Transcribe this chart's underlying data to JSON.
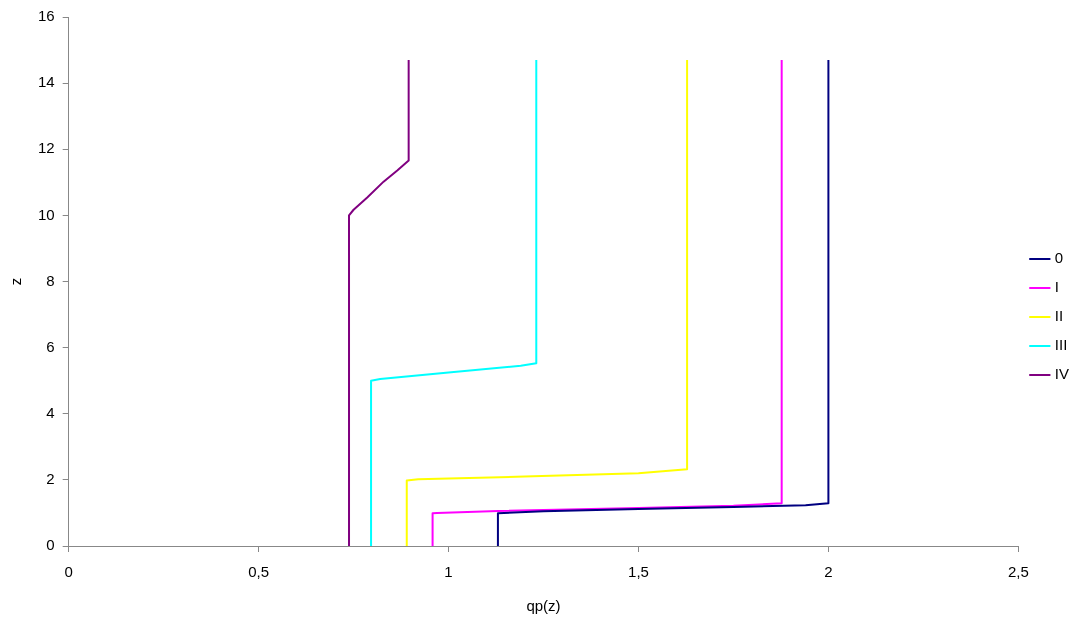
{
  "chart_data": {
    "type": "line",
    "xlabel": "qp(z)",
    "ylabel": "z",
    "xlim": [
      0,
      2.5
    ],
    "ylim": [
      0,
      16
    ],
    "xticks": [
      0,
      {
        "value": 0.5,
        "label": "0,5"
      },
      1,
      {
        "value": 1.5,
        "label": "1,5"
      },
      2,
      {
        "value": 2.5,
        "label": "2,5"
      }
    ],
    "yticks": [
      0,
      2,
      4,
      6,
      8,
      10,
      12,
      14,
      16
    ],
    "grid": false,
    "legend": "right",
    "marker": "none",
    "line_style": "solid",
    "series": [
      {
        "name": "0",
        "color": "#000080",
        "x": [
          1.13,
          1.13,
          1.25,
          1.5,
          1.75,
          1.94,
          2.0,
          2.0
        ],
        "values": [
          0,
          0.99,
          1.05,
          1.12,
          1.18,
          1.23,
          1.29,
          14.7
        ]
      },
      {
        "name": "I",
        "color": "#ff00ff",
        "x": [
          0.958,
          0.958,
          0.97,
          1.13,
          1.5,
          1.75,
          1.877,
          1.877
        ],
        "values": [
          0,
          0.99,
          1.0,
          1.06,
          1.15,
          1.22,
          1.29,
          14.7
        ]
      },
      {
        "name": "II",
        "color": "#ffff00",
        "x": [
          0.89,
          0.89,
          0.92,
          1.2,
          1.5,
          1.628,
          1.628
        ],
        "values": [
          0,
          1.98,
          2.02,
          2.1,
          2.2,
          2.32,
          14.7
        ]
      },
      {
        "name": "III",
        "color": "#00ffff",
        "x": [
          0.796,
          0.796,
          0.82,
          1.0,
          1.19,
          1.231,
          1.231
        ],
        "values": [
          0,
          5.0,
          5.05,
          5.25,
          5.45,
          5.53,
          14.7
        ]
      },
      {
        "name": "IV",
        "color": "#800080",
        "x": [
          0.738,
          0.738,
          0.75,
          0.786,
          0.829,
          0.865,
          0.895,
          0.895
        ],
        "values": [
          0,
          10.0,
          10.17,
          10.54,
          11.02,
          11.36,
          11.66,
          14.7
        ]
      }
    ]
  }
}
